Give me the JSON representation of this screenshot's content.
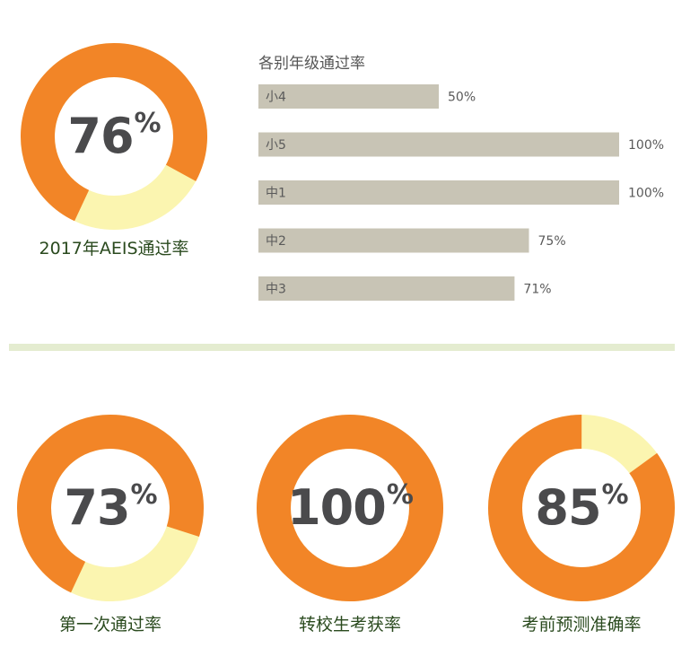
{
  "colors": {
    "orange": "#f28527",
    "yellow": "#fbf5b0",
    "bar": "#c8c4b5",
    "text": "#4a4a4c"
  },
  "top_donut": {
    "value": 76,
    "unit": "%",
    "label": "2017年AEIS通过率"
  },
  "bars_title": "各别年级通过率",
  "bottom_donuts": [
    {
      "value": 73,
      "unit": "%",
      "label": "第一次通过率"
    },
    {
      "value": 100,
      "unit": "%",
      "label": "转校生考获率"
    },
    {
      "value": 85,
      "unit": "%",
      "label": "考前预测准确率"
    }
  ],
  "chart_data": [
    {
      "type": "pie",
      "title": "2017年AEIS通过率",
      "values": [
        76,
        24
      ]
    },
    {
      "type": "bar",
      "title": "各别年级通过率",
      "orientation": "horizontal",
      "categories": [
        "小4",
        "小5",
        "中1",
        "中2",
        "中3"
      ],
      "values": [
        50,
        100,
        100,
        75,
        71
      ],
      "value_labels": [
        "50%",
        "100%",
        "100%",
        "75%",
        "71%"
      ],
      "xlim": [
        0,
        100
      ]
    },
    {
      "type": "pie",
      "title": "第一次通过率",
      "values": [
        73,
        27
      ]
    },
    {
      "type": "pie",
      "title": "转校生考获率",
      "values": [
        100,
        0
      ]
    },
    {
      "type": "pie",
      "title": "考前预测准确率",
      "values": [
        85,
        15
      ]
    }
  ]
}
